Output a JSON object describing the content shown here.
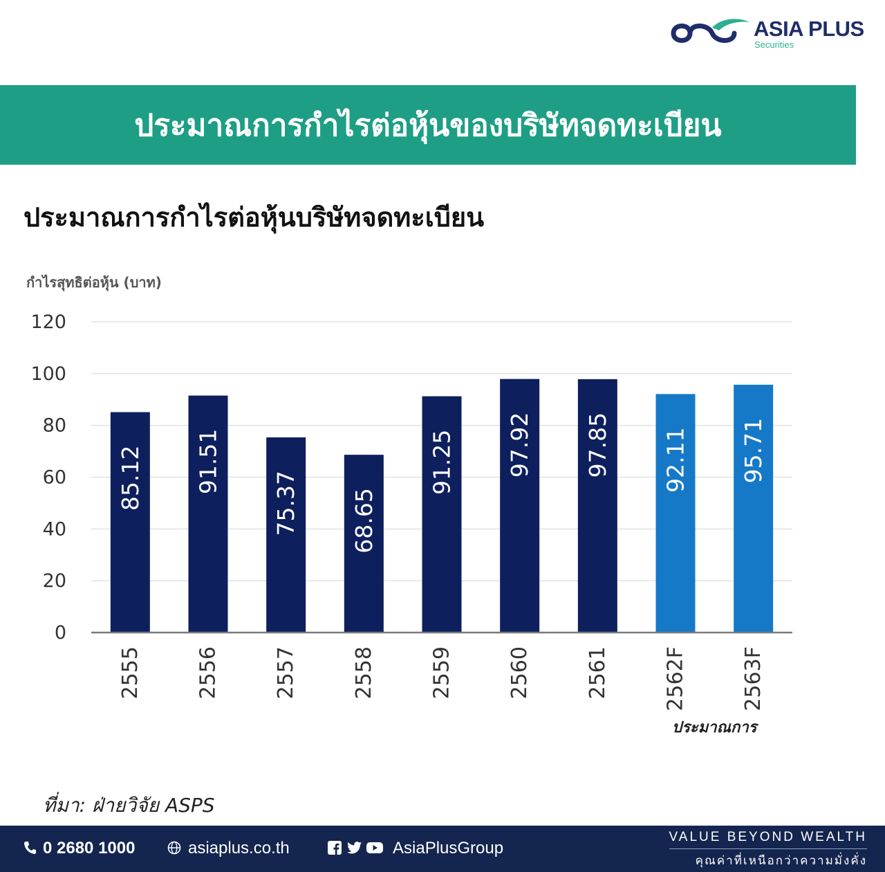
{
  "logo": {
    "brand": "ASIA PLUS",
    "sub": "Securities"
  },
  "banner": {
    "title": "ประมาณการกำไรต่อหุ้นของบริษัทจดทะเบียน"
  },
  "source_text": "ที่มา: ฝ่ายวิจัย ASPS",
  "footer": {
    "phone": "0 2680 1000",
    "website": "asiaplus.co.th",
    "social": "AsiaPlusGroup",
    "tagline_en": "VALUE BEYOND WEALTH",
    "tagline_th": "คุณค่าที่เหนือกว่าความมั่งคั่ง",
    "icons": [
      "phone-icon",
      "globe-icon",
      "facebook-icon",
      "twitter-icon",
      "youtube-icon"
    ]
  },
  "colors": {
    "accent": "#1e9e85",
    "actual_bar": "#0e1f5e",
    "forecast_bar": "#1679c8",
    "footer_bg": "#14264f"
  },
  "chart_data": {
    "type": "bar",
    "title": "ประมาณการกำไรต่อหุ้นบริษัทจดทะเบียน",
    "ylabel": "กำไรสุทธิต่อหุ้น (บาท)",
    "xlabel": "",
    "categories": [
      "2555",
      "2556",
      "2557",
      "2558",
      "2559",
      "2560",
      "2561",
      "2562F",
      "2563F"
    ],
    "values": [
      85.12,
      91.51,
      75.37,
      68.65,
      91.25,
      97.92,
      97.85,
      92.11,
      95.71
    ],
    "forecast": [
      false,
      false,
      false,
      false,
      false,
      false,
      false,
      true,
      true
    ],
    "forecast_label": "ประมาณการ",
    "ylim": [
      0,
      120
    ],
    "yticks": [
      0,
      20,
      40,
      60,
      80,
      100,
      120
    ],
    "grid": true,
    "data_labels": true
  }
}
